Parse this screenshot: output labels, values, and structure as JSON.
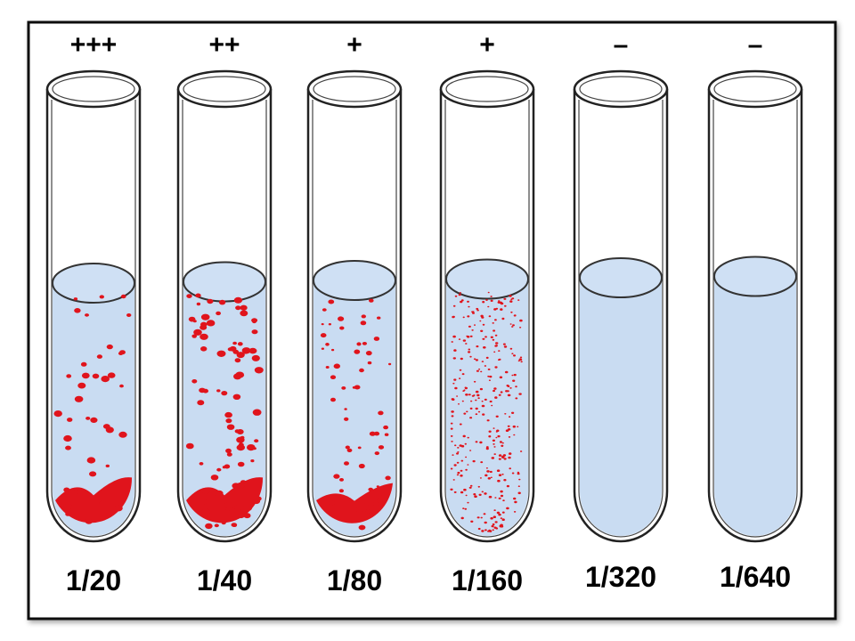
{
  "tubes": [
    {
      "reaction": "+++",
      "dilution": "1/20"
    },
    {
      "reaction": "++",
      "dilution": "1/40"
    },
    {
      "reaction": "+",
      "dilution": "1/80"
    },
    {
      "reaction": "+",
      "dilution": "1/160"
    },
    {
      "reaction": "–",
      "dilution": "1/320"
    },
    {
      "reaction": "–",
      "dilution": "1/640"
    }
  ]
}
